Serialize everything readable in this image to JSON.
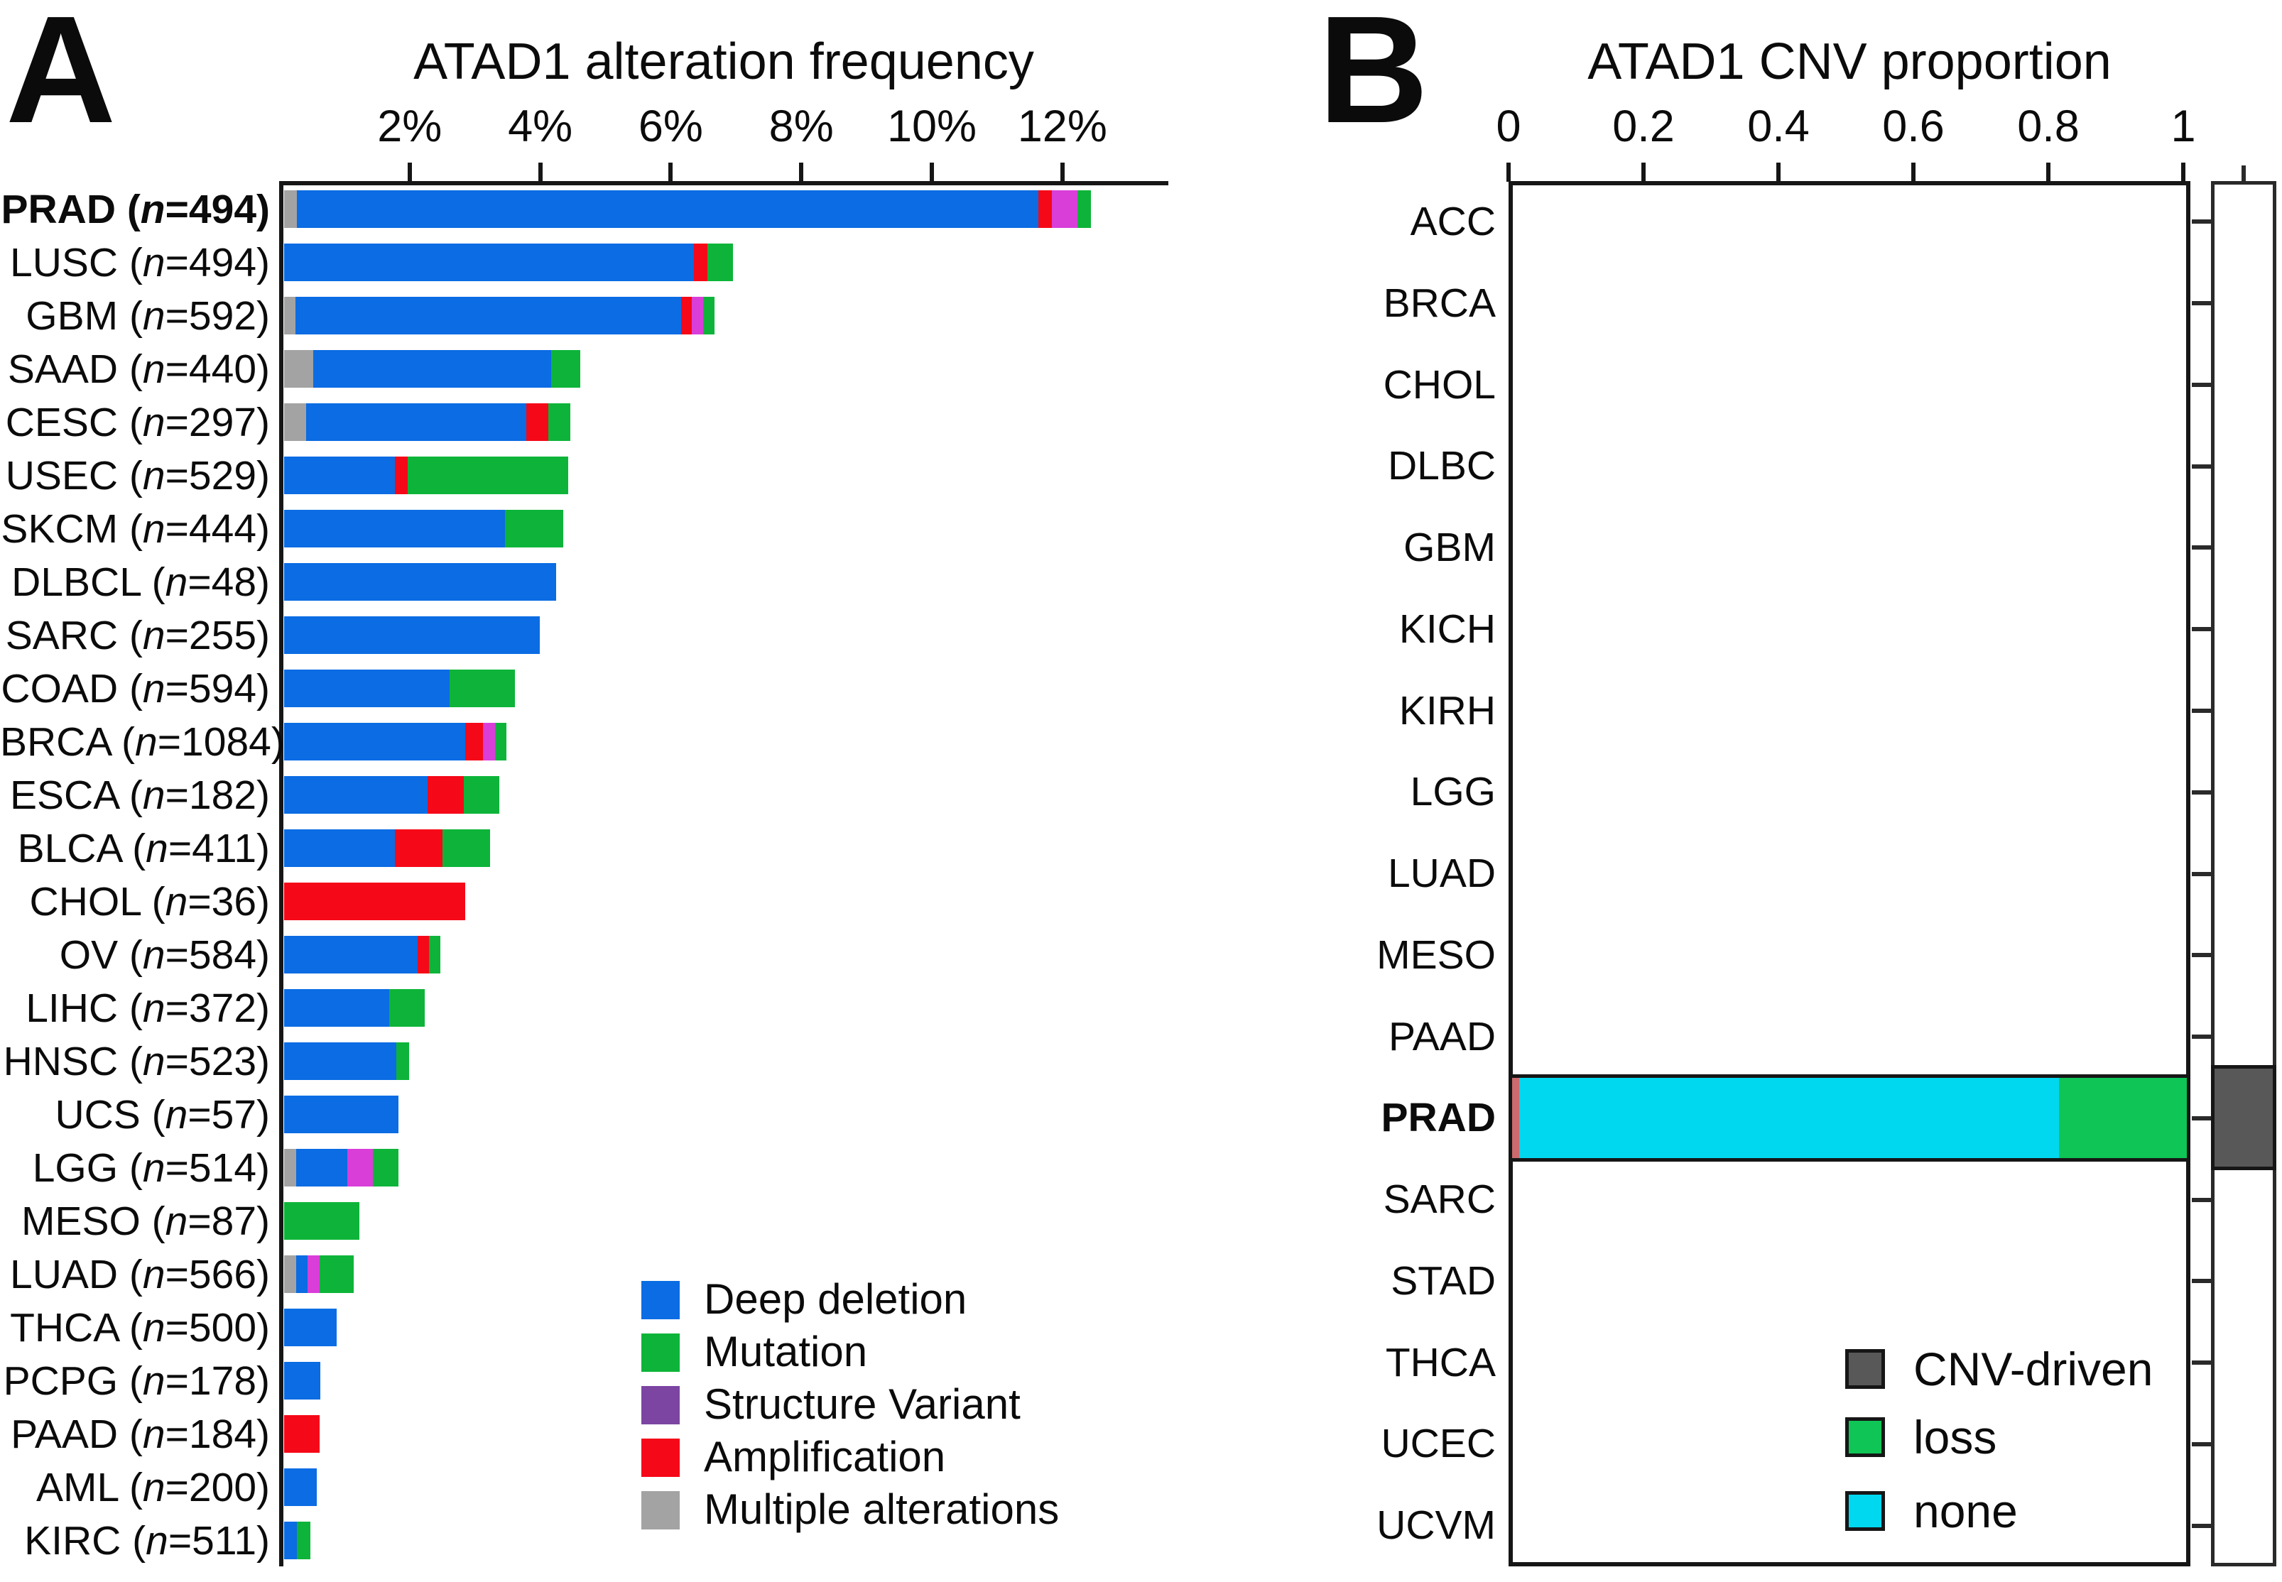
{
  "colors": {
    "deep_deletion": "#0B6CE3",
    "mutation": "#0DB439",
    "structure_variant_bar": "#D93ED9",
    "structure_variant_legend": "#7C45A2",
    "amplification": "#F50818",
    "multiple_alterations": "#A3A3A3",
    "cnv_driven": "#585858",
    "loss": "#0EC556",
    "none_cnv": "#00D8F0",
    "unlabeled_red_sliver": "#CC6A6E",
    "axis": "#161616"
  },
  "label_parts": {
    "open": " (",
    "n_symbol": "n",
    "eq": "=",
    "close": ")"
  },
  "segment_color_map": {
    "multiple": "multiple_alterations",
    "deep": "deep_deletion",
    "amp": "amplification",
    "sv": "structure_variant_bar",
    "mut": "mutation",
    "sliver": "unlabeled_red_sliver",
    "none": "none_cnv",
    "loss": "loss"
  },
  "chart_data": [
    {
      "id": "alteration_frequency",
      "type": "bar",
      "orientation": "horizontal",
      "stacked": true,
      "panel_letter": "A",
      "title": "ATAD1 alteration frequency",
      "x_unit": "percent",
      "x_tick_labels": [
        "2%",
        "4%",
        "6%",
        "8%",
        "10%",
        "12%"
      ],
      "x_tick_values": [
        2,
        4,
        6,
        8,
        10,
        12
      ],
      "xlim": [
        0,
        13.62
      ],
      "grid": false,
      "legend_position": "bottom-right-inside",
      "legend": [
        {
          "key": "deep",
          "label": "Deep deletion",
          "color": "deep_deletion"
        },
        {
          "key": "mut",
          "label": "Mutation",
          "color": "mutation"
        },
        {
          "key": "sv",
          "label": "Structure Variant",
          "color": "structure_variant_legend"
        },
        {
          "key": "amp",
          "label": "Amplification",
          "color": "amplification"
        },
        {
          "key": "multiple",
          "label": "Multiple alterations",
          "color": "multiple_alterations"
        }
      ],
      "rows": [
        {
          "code": "PRAD",
          "n": "494",
          "bold": true,
          "segments": [
            [
              "multiple",
              0.2
            ],
            [
              "deep",
              11.36
            ],
            [
              "amp",
              0.2
            ],
            [
              "sv",
              0.4
            ],
            [
              "mut",
              0.2
            ]
          ]
        },
        {
          "code": "LUSC",
          "n": "494",
          "bold": false,
          "segments": [
            [
              "deep",
              6.28
            ],
            [
              "amp",
              0.2
            ],
            [
              "mut",
              0.4
            ]
          ]
        },
        {
          "code": "GBM",
          "n": "592",
          "bold": false,
          "segments": [
            [
              "multiple",
              0.17
            ],
            [
              "deep",
              5.91
            ],
            [
              "amp",
              0.17
            ],
            [
              "sv",
              0.17
            ],
            [
              "mut",
              0.17
            ]
          ]
        },
        {
          "code": "SAAD",
          "n": "440",
          "bold": false,
          "segments": [
            [
              "multiple",
              0.45
            ],
            [
              "deep",
              3.64
            ],
            [
              "mut",
              0.45
            ]
          ]
        },
        {
          "code": "CESC",
          "n": "297",
          "bold": false,
          "segments": [
            [
              "multiple",
              0.34
            ],
            [
              "deep",
              3.37
            ],
            [
              "amp",
              0.34
            ],
            [
              "mut",
              0.34
            ]
          ]
        },
        {
          "code": "USEC",
          "n": "529",
          "bold": false,
          "segments": [
            [
              "deep",
              1.7
            ],
            [
              "amp",
              0.19
            ],
            [
              "mut",
              2.46
            ]
          ]
        },
        {
          "code": "SKCM",
          "n": "444",
          "bold": false,
          "segments": [
            [
              "deep",
              3.38
            ],
            [
              "mut",
              0.9
            ]
          ]
        },
        {
          "code": "DLBCL",
          "n": "48",
          "bold": false,
          "segments": [
            [
              "deep",
              4.17
            ]
          ]
        },
        {
          "code": "SARC",
          "n": "255",
          "bold": false,
          "segments": [
            [
              "deep",
              3.92
            ]
          ]
        },
        {
          "code": "COAD",
          "n": "594",
          "bold": false,
          "segments": [
            [
              "deep",
              2.53
            ],
            [
              "mut",
              1.01
            ]
          ]
        },
        {
          "code": "BRCA",
          "n": "1084",
          "bold": false,
          "segments": [
            [
              "deep",
              2.77
            ],
            [
              "amp",
              0.28
            ],
            [
              "sv",
              0.18
            ],
            [
              "mut",
              0.18
            ]
          ]
        },
        {
          "code": "ESCA",
          "n": "182",
          "bold": false,
          "segments": [
            [
              "deep",
              2.2
            ],
            [
              "amp",
              0.55
            ],
            [
              "mut",
              0.55
            ]
          ]
        },
        {
          "code": "BLCA",
          "n": "411",
          "bold": false,
          "segments": [
            [
              "deep",
              1.7
            ],
            [
              "amp",
              0.73
            ],
            [
              "mut",
              0.73
            ]
          ]
        },
        {
          "code": "CHOL",
          "n": "36",
          "bold": false,
          "segments": [
            [
              "amp",
              2.78
            ]
          ]
        },
        {
          "code": "OV",
          "n": "584",
          "bold": false,
          "segments": [
            [
              "deep",
              2.05
            ],
            [
              "amp",
              0.17
            ],
            [
              "mut",
              0.17
            ]
          ]
        },
        {
          "code": "LIHC",
          "n": "372",
          "bold": false,
          "segments": [
            [
              "deep",
              1.61
            ],
            [
              "mut",
              0.54
            ]
          ]
        },
        {
          "code": "HNSC",
          "n": "523",
          "bold": false,
          "segments": [
            [
              "deep",
              1.72
            ],
            [
              "mut",
              0.19
            ]
          ]
        },
        {
          "code": "UCS",
          "n": "57",
          "bold": false,
          "segments": [
            [
              "deep",
              1.75
            ]
          ]
        },
        {
          "code": "LGG",
          "n": "514",
          "bold": false,
          "segments": [
            [
              "multiple",
              0.19
            ],
            [
              "deep",
              0.78
            ],
            [
              "sv",
              0.39
            ],
            [
              "mut",
              0.39
            ]
          ]
        },
        {
          "code": "MESO",
          "n": "87",
          "bold": false,
          "segments": [
            [
              "mut",
              1.15
            ]
          ]
        },
        {
          "code": "LUAD",
          "n": "566",
          "bold": false,
          "segments": [
            [
              "multiple",
              0.18
            ],
            [
              "deep",
              0.18
            ],
            [
              "sv",
              0.18
            ],
            [
              "mut",
              0.53
            ]
          ]
        },
        {
          "code": "THCA",
          "n": "500",
          "bold": false,
          "segments": [
            [
              "deep",
              0.8
            ]
          ]
        },
        {
          "code": "PCPG",
          "n": "178",
          "bold": false,
          "segments": [
            [
              "deep",
              0.56
            ]
          ]
        },
        {
          "code": "PAAD",
          "n": "184",
          "bold": false,
          "segments": [
            [
              "amp",
              0.54
            ]
          ]
        },
        {
          "code": "AML",
          "n": "200",
          "bold": false,
          "segments": [
            [
              "deep",
              0.5
            ]
          ]
        },
        {
          "code": "KIRC",
          "n": "511",
          "bold": false,
          "segments": [
            [
              "deep",
              0.2
            ],
            [
              "mut",
              0.2
            ]
          ]
        }
      ]
    },
    {
      "id": "cnv_proportion",
      "type": "bar",
      "orientation": "horizontal",
      "stacked": true,
      "panel_letter": "B",
      "title": "ATAD1 CNV proportion",
      "x_tick_labels": [
        "0",
        "0.2",
        "0.4",
        "0.6",
        "0.8",
        "1"
      ],
      "x_tick_values": [
        0,
        0.2,
        0.4,
        0.6,
        0.8,
        1
      ],
      "xlim": [
        0,
        1
      ],
      "grid": false,
      "categories": [
        "ACC",
        "BRCA",
        "CHOL",
        "DLBC",
        "GBM",
        "KICH",
        "KIRH",
        "LGG",
        "LUAD",
        "MESO",
        "PAAD",
        "PRAD",
        "SARC",
        "STAD",
        "THCA",
        "UCEC",
        "UCVM"
      ],
      "bold_category": "PRAD",
      "bars": {
        "PRAD": {
          "segments": [
            [
              "sliver",
              0.01
            ],
            [
              "none",
              0.8
            ],
            [
              "loss",
              0.19
            ]
          ]
        }
      },
      "cnv_driven_marked": [
        "PRAD"
      ],
      "legend_position": "bottom-right-inside",
      "legend": [
        {
          "key": "cnv_driven",
          "label": "CNV-driven",
          "color": "cnv_driven"
        },
        {
          "key": "loss",
          "label": "loss",
          "color": "loss"
        },
        {
          "key": "none",
          "label": "none",
          "color": "none_cnv"
        }
      ]
    }
  ]
}
